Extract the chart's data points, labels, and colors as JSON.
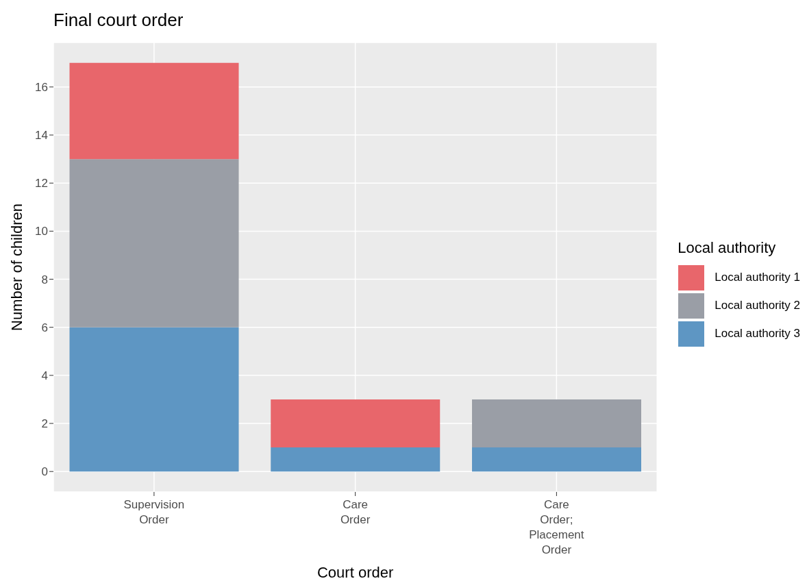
{
  "chart_data": {
    "type": "bar",
    "title": "Final court order",
    "xlabel": "Court order",
    "ylabel": "Number of children",
    "legend_title": "Local authority",
    "categories": [
      "Supervision\nOrder",
      "Care\nOrder",
      "Care\nOrder;\nPlacement\nOrder"
    ],
    "stacked": true,
    "series": [
      {
        "name": "Local authority 3",
        "color": "#5e96c3",
        "values": [
          6,
          1,
          1
        ]
      },
      {
        "name": "Local authority 2",
        "color": "#9a9ea6",
        "values": [
          7,
          0,
          2
        ]
      },
      {
        "name": "Local authority 1",
        "color": "#e8666b",
        "values": [
          4,
          2,
          0
        ]
      }
    ],
    "ylim": [
      -0.85,
      17.85
    ],
    "yticks": [
      0,
      2,
      4,
      6,
      8,
      10,
      12,
      14,
      16
    ],
    "grid": true,
    "legend": "right"
  }
}
